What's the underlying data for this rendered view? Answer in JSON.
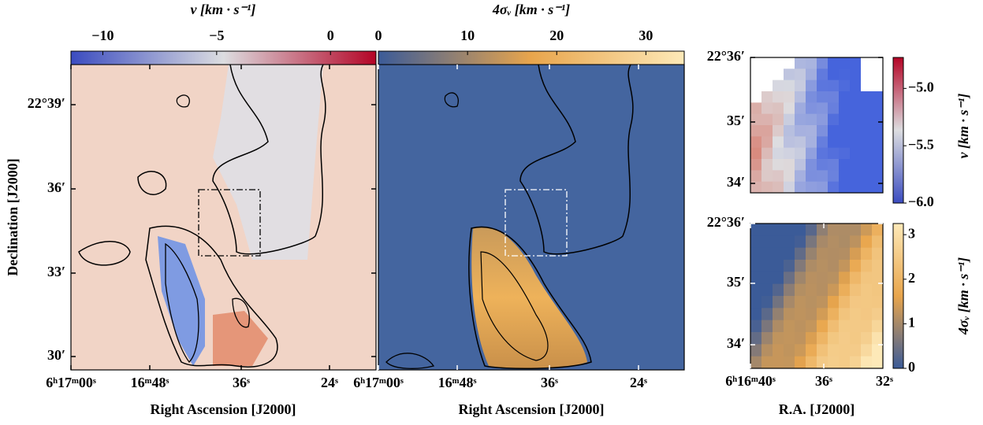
{
  "figure": {
    "panels": [
      {
        "colorbar": {
          "label": "v [km · s⁻¹]",
          "lim": [
            -11.4,
            2.0
          ],
          "ticks": [
            {
              "value": -10,
              "label": "−10"
            },
            {
              "value": -5,
              "label": "−5"
            },
            0
          ],
          "colors": [
            "#3b4cc0",
            "#dcdde0",
            "#b40426"
          ]
        },
        "xlabel": "Right Ascension [J2000]",
        "ylabel": "Declination [J2000]",
        "xticklabels": [
          "6ʰ17ᵐ00ˢ",
          "16ᵐ48ˢ",
          "36ˢ",
          "24ˢ"
        ],
        "yticklabels": [
          "22°39′",
          "36′",
          "33′",
          "30′"
        ]
      },
      {
        "colorbar": {
          "label": "4σᵥ [km · s⁻¹]",
          "lim": [
            0,
            34.3
          ],
          "ticks": [
            0,
            10,
            20,
            30
          ],
          "colors": [
            "#3b5b98",
            "#e8a54c",
            "#fde9b8"
          ]
        },
        "xlabel": "Right Ascension [J2000]",
        "xticklabels": [
          "6ʰ17ᵐ00ˢ",
          "16ᵐ48ˢ",
          "36ˢ",
          "24ˢ"
        ]
      },
      {
        "colorbar": {
          "label": "v [km · s⁻¹]",
          "lim": [
            -6.0,
            -4.73
          ],
          "ticks": [
            {
              "value": -5.0,
              "label": "−5.0"
            },
            {
              "value": -5.5,
              "label": "−5.5"
            },
            {
              "value": -6.0,
              "label": "−6.0"
            }
          ],
          "colors": [
            "#3b4cc0",
            "#dcdde0",
            "#b40426"
          ]
        },
        "yticklabels": [
          "22°36′",
          "35′",
          "34′"
        ]
      },
      {
        "colorbar": {
          "label": "4σᵥ [km · s⁻¹]",
          "lim": [
            0,
            3.25
          ],
          "ticks": [
            0,
            1,
            2,
            3
          ],
          "colors": [
            "#3b5b98",
            "#e8a54c",
            "#fde9b8"
          ]
        },
        "xlabel": "R.A. [J2000]",
        "xticklabels": [
          "6ʰ16ᵐ40ˢ",
          "36ˢ",
          "32ˢ"
        ],
        "yticklabels": [
          "22°36′",
          "35′",
          "34′"
        ]
      }
    ]
  }
}
